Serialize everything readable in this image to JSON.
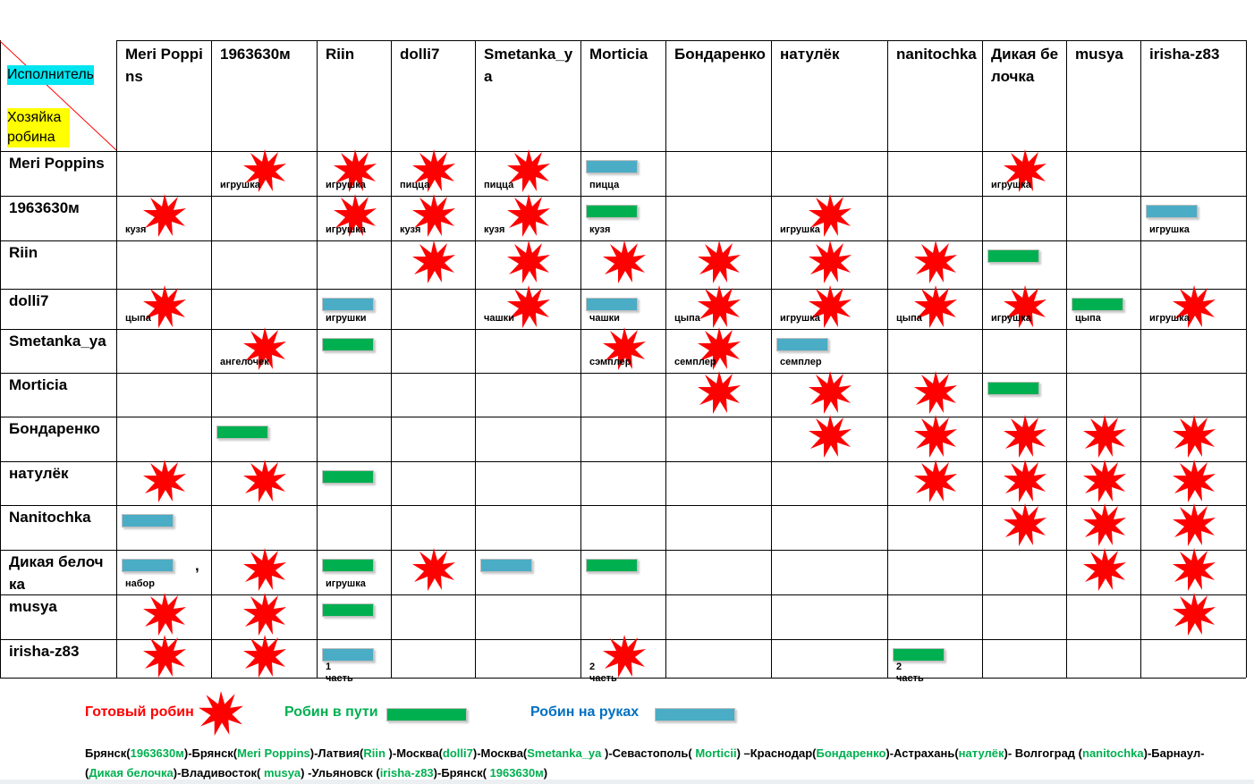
{
  "corner": {
    "executor_label": "Исполнитель",
    "owner_label": "Хозяйка робина"
  },
  "columns": [
    "Meri Poppins",
    "1963630м",
    "Riin",
    "dolli7",
    "Smetanka_ya",
    "Morticia",
    "Бондаренко",
    "натулёк",
    "nanitochka",
    "Дикая белочка",
    "musya",
    "irisha-z83"
  ],
  "rows": [
    "Meri Poppins",
    "1963630м",
    "Riin",
    "dolli7",
    "Smetanka_ya",
    "Morticia",
    "Бондаренко",
    "натулёк",
    "Nanitochka",
    "Дикая белочка",
    "musya",
    "irisha-z83"
  ],
  "cells": [
    {
      "r": 0,
      "c": 1,
      "status": "ready",
      "note": "игрушка"
    },
    {
      "r": 0,
      "c": 2,
      "status": "ready",
      "note": "игрушка"
    },
    {
      "r": 0,
      "c": 3,
      "status": "ready",
      "note": "пицца"
    },
    {
      "r": 0,
      "c": 4,
      "status": "ready",
      "note": "пицца"
    },
    {
      "r": 0,
      "c": 5,
      "status": "in_hand",
      "note": "пицца"
    },
    {
      "r": 0,
      "c": 9,
      "status": "ready",
      "note": "игрушка"
    },
    {
      "r": 1,
      "c": 0,
      "status": "ready",
      "note": "кузя"
    },
    {
      "r": 1,
      "c": 2,
      "status": "ready",
      "note": "игрушка"
    },
    {
      "r": 1,
      "c": 3,
      "status": "ready",
      "note": "кузя"
    },
    {
      "r": 1,
      "c": 4,
      "status": "ready",
      "note": "кузя"
    },
    {
      "r": 1,
      "c": 5,
      "status": "in_transit",
      "note": "кузя"
    },
    {
      "r": 1,
      "c": 7,
      "status": "ready",
      "note": "игрушка"
    },
    {
      "r": 1,
      "c": 11,
      "status": "in_hand",
      "note": "игрушка"
    },
    {
      "r": 2,
      "c": 3,
      "status": "ready",
      "note": ""
    },
    {
      "r": 2,
      "c": 4,
      "status": "ready",
      "note": ""
    },
    {
      "r": 2,
      "c": 5,
      "status": "ready",
      "note": ""
    },
    {
      "r": 2,
      "c": 6,
      "status": "ready",
      "note": ""
    },
    {
      "r": 2,
      "c": 7,
      "status": "ready",
      "note": ""
    },
    {
      "r": 2,
      "c": 8,
      "status": "ready",
      "note": ""
    },
    {
      "r": 2,
      "c": 9,
      "status": "in_transit",
      "note": ""
    },
    {
      "r": 3,
      "c": 0,
      "status": "ready",
      "note": "цыпа"
    },
    {
      "r": 3,
      "c": 2,
      "status": "in_hand",
      "note": "игрушки"
    },
    {
      "r": 3,
      "c": 4,
      "status": "ready",
      "note": "чашки"
    },
    {
      "r": 3,
      "c": 5,
      "status": "in_hand",
      "note": "чашки"
    },
    {
      "r": 3,
      "c": 6,
      "status": "ready",
      "note": "цыпа"
    },
    {
      "r": 3,
      "c": 7,
      "status": "ready",
      "note": "игрушка"
    },
    {
      "r": 3,
      "c": 8,
      "status": "ready",
      "note": "цыпа"
    },
    {
      "r": 3,
      "c": 9,
      "status": "ready",
      "note": "игрушка"
    },
    {
      "r": 3,
      "c": 10,
      "status": "in_transit",
      "note": "цыпа"
    },
    {
      "r": 3,
      "c": 11,
      "status": "ready",
      "note": "игрушка"
    },
    {
      "r": 4,
      "c": 1,
      "status": "ready",
      "note": "ангелочек"
    },
    {
      "r": 4,
      "c": 2,
      "status": "in_transit",
      "note": ""
    },
    {
      "r": 4,
      "c": 5,
      "status": "ready",
      "note": "сэмплер"
    },
    {
      "r": 4,
      "c": 6,
      "status": "ready",
      "note": "семплер"
    },
    {
      "r": 4,
      "c": 7,
      "status": "in_hand",
      "note": "семплер"
    },
    {
      "r": 5,
      "c": 6,
      "status": "ready",
      "note": ""
    },
    {
      "r": 5,
      "c": 7,
      "status": "ready",
      "note": ""
    },
    {
      "r": 5,
      "c": 8,
      "status": "ready",
      "note": ""
    },
    {
      "r": 5,
      "c": 9,
      "status": "in_transit",
      "note": ""
    },
    {
      "r": 6,
      "c": 1,
      "status": "in_transit",
      "note": ""
    },
    {
      "r": 6,
      "c": 7,
      "status": "ready",
      "note": ""
    },
    {
      "r": 6,
      "c": 8,
      "status": "ready",
      "note": ""
    },
    {
      "r": 6,
      "c": 9,
      "status": "ready",
      "note": ""
    },
    {
      "r": 6,
      "c": 10,
      "status": "ready",
      "note": ""
    },
    {
      "r": 6,
      "c": 11,
      "status": "ready",
      "note": ""
    },
    {
      "r": 7,
      "c": 0,
      "status": "ready",
      "note": ""
    },
    {
      "r": 7,
      "c": 1,
      "status": "ready",
      "note": ""
    },
    {
      "r": 7,
      "c": 2,
      "status": "in_transit",
      "note": ""
    },
    {
      "r": 7,
      "c": 8,
      "status": "ready",
      "note": ""
    },
    {
      "r": 7,
      "c": 9,
      "status": "ready",
      "note": ""
    },
    {
      "r": 7,
      "c": 10,
      "status": "ready",
      "note": ""
    },
    {
      "r": 7,
      "c": 11,
      "status": "ready",
      "note": ""
    },
    {
      "r": 8,
      "c": 0,
      "status": "in_hand",
      "note": ""
    },
    {
      "r": 8,
      "c": 9,
      "status": "ready",
      "note": ""
    },
    {
      "r": 8,
      "c": 10,
      "status": "ready",
      "note": ""
    },
    {
      "r": 8,
      "c": 11,
      "status": "ready",
      "note": ""
    },
    {
      "r": 9,
      "c": 0,
      "status": "in_hand",
      "note": "набор"
    },
    {
      "r": 9,
      "c": 1,
      "status": "ready",
      "note": ""
    },
    {
      "r": 9,
      "c": 2,
      "status": "in_transit",
      "note": "игрушка"
    },
    {
      "r": 9,
      "c": 3,
      "status": "ready",
      "note": ""
    },
    {
      "r": 9,
      "c": 4,
      "status": "in_hand",
      "note": ""
    },
    {
      "r": 9,
      "c": 5,
      "status": "in_transit",
      "note": ""
    },
    {
      "r": 9,
      "c": 10,
      "status": "ready",
      "note": ""
    },
    {
      "r": 9,
      "c": 11,
      "status": "ready",
      "note": ""
    },
    {
      "r": 10,
      "c": 0,
      "status": "ready",
      "note": ""
    },
    {
      "r": 10,
      "c": 1,
      "status": "ready",
      "note": ""
    },
    {
      "r": 10,
      "c": 2,
      "status": "in_transit",
      "note": ""
    },
    {
      "r": 10,
      "c": 11,
      "status": "ready",
      "note": ""
    },
    {
      "r": 11,
      "c": 0,
      "status": "ready",
      "note": ""
    },
    {
      "r": 11,
      "c": 1,
      "status": "ready",
      "note": ""
    },
    {
      "r": 11,
      "c": 2,
      "status": "in_hand",
      "note": "1 часть"
    },
    {
      "r": 11,
      "c": 5,
      "status": "ready",
      "note": "2 часть"
    },
    {
      "r": 11,
      "c": 8,
      "status": "in_transit",
      "note": "2 часть"
    }
  ],
  "extra_marks": {
    "comma": ","
  },
  "legend": {
    "ready": "Готовый робин",
    "in_transit": "Робин в пути",
    "in_hand": "Робин на руках"
  },
  "colors": {
    "star": "#ff0000",
    "in_transit": "#00b050",
    "in_hand": "#4bacc6",
    "legend_ready": "#ff0000",
    "legend_transit": "#00b050",
    "legend_hand": "#0070c0"
  },
  "route": [
    {
      "t": "Брянск(",
      "k": "n"
    },
    {
      "t": "1963630м",
      "k": "g"
    },
    {
      "t": ")-Брянск(",
      "k": "n"
    },
    {
      "t": "Meri Poppins",
      "k": "g"
    },
    {
      "t": ")-Латвия(",
      "k": "n"
    },
    {
      "t": "Riin ",
      "k": "g"
    },
    {
      "t": ")-Москва(",
      "k": "n"
    },
    {
      "t": "dolli7",
      "k": "g"
    },
    {
      "t": ")-Москва(",
      "k": "n"
    },
    {
      "t": "Smetanka_ya ",
      "k": "g"
    },
    {
      "t": ")-Севастополь( ",
      "k": "n"
    },
    {
      "t": "Morticii",
      "k": "g"
    },
    {
      "t": ") –Краснодар(",
      "k": "n"
    },
    {
      "t": "Бондаренко",
      "k": "g"
    },
    {
      "t": ")-Астрахань(",
      "k": "n"
    },
    {
      "t": "натулёк",
      "k": "g"
    },
    {
      "t": ")- Волгоград (",
      "k": "n"
    },
    {
      "t": "nanitochka",
      "k": "g"
    },
    {
      "t": ")-Барнаул- (",
      "k": "n"
    },
    {
      "t": "Дикая белочка",
      "k": "g"
    },
    {
      "t": ")-Владивосток( ",
      "k": "n"
    },
    {
      "t": "musya",
      "k": "g"
    },
    {
      "t": ") -Ульяновск (",
      "k": "n"
    },
    {
      "t": "irisha-z83",
      "k": "g"
    },
    {
      "t": ")-Брянск( ",
      "k": "n"
    },
    {
      "t": "1963630м",
      "k": "g"
    },
    {
      "t": ")",
      "k": "n"
    }
  ]
}
